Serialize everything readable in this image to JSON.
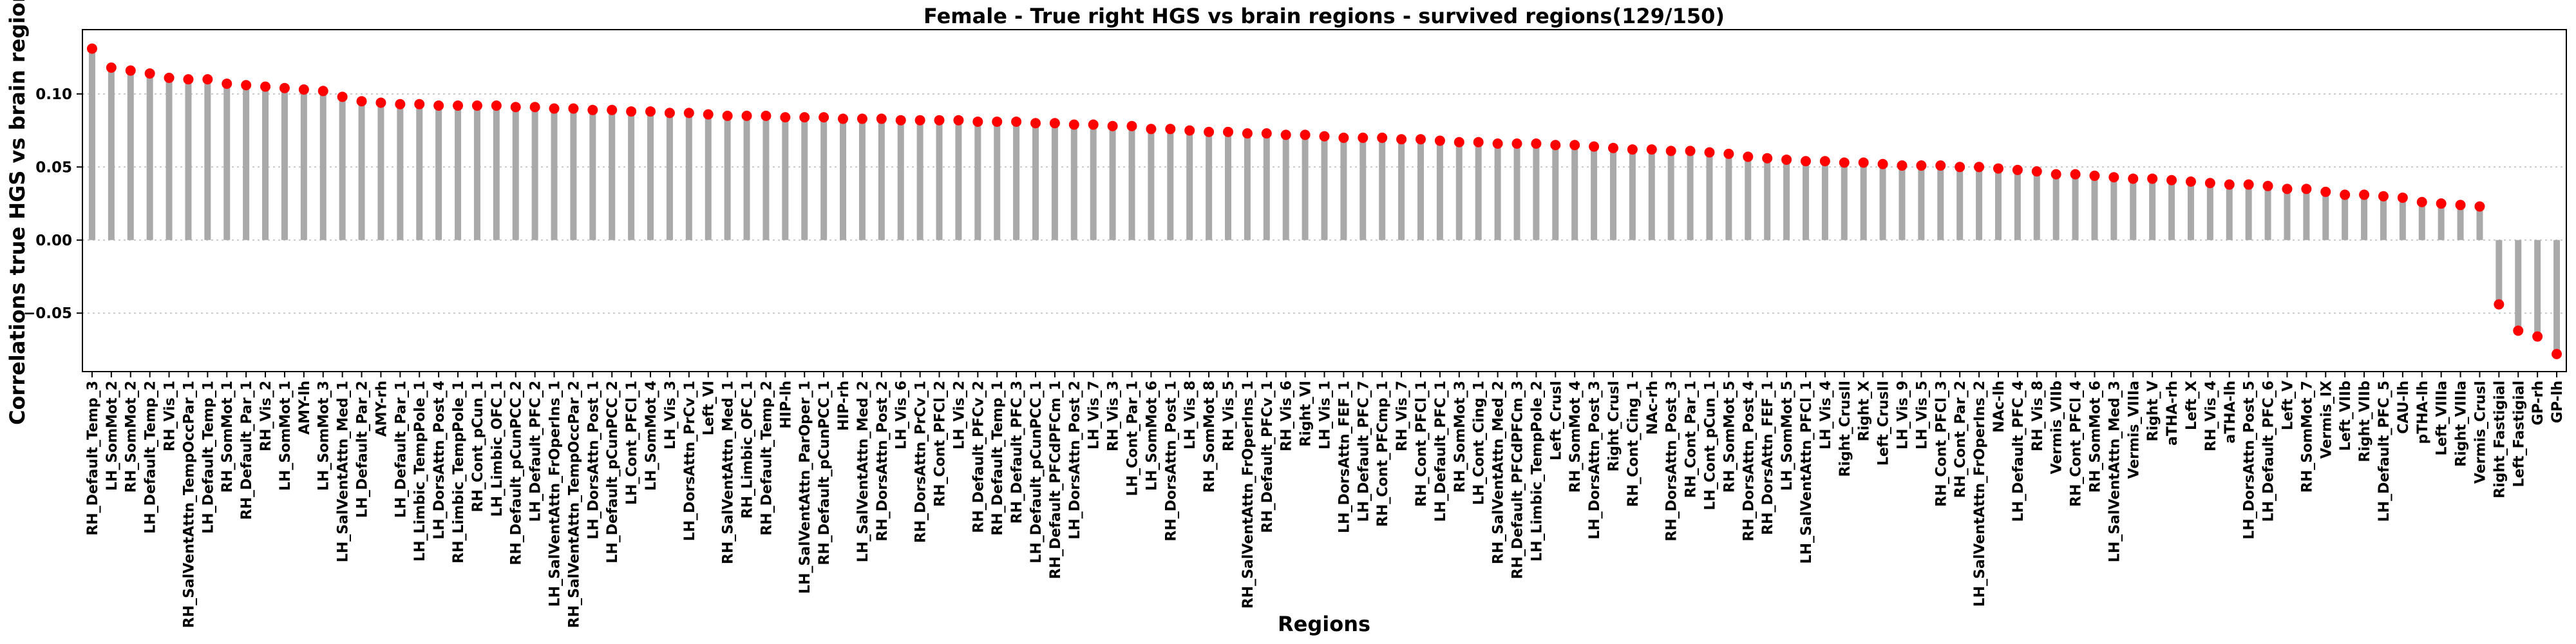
{
  "chart_data": {
    "type": "lollipop",
    "title": "Female - True right HGS vs brain regions - survived regions(129/150)",
    "x_label": "Regions",
    "y_label": "Correlations true HGS vs brain regions",
    "stem_color": "#a9a9a9",
    "marker_color": "#ff0000",
    "grid": true,
    "ylim": [
      -0.09,
      0.144
    ],
    "yticks": [
      {
        "value": -0.05,
        "label": "−0.05"
      },
      {
        "value": 0,
        "label": "0.00"
      },
      {
        "value": 0.05,
        "label": "0.05"
      },
      {
        "value": 0.1,
        "label": "0.10"
      }
    ],
    "categories": [
      "RH_Default_Temp_3",
      "LH_SomMot_2",
      "RH_SomMot_2",
      "LH_Default_Temp_2",
      "RH_Vis_1",
      "RH_SalVentAttn_TempOccPar_1",
      "LH_Default_Temp_1",
      "RH_SomMot_1",
      "RH_Default_Par_1",
      "RH_Vis_2",
      "LH_SomMot_1",
      "AMY-lh",
      "LH_SomMot_3",
      "LH_SalVentAttn_Med_1",
      "LH_Default_Par_2",
      "AMY-rh",
      "LH_Default_Par_1",
      "LH_Limbic_TempPole_1",
      "LH_DorsAttn_Post_4",
      "RH_Limbic_TempPole_1",
      "RH_Cont_pCun_1",
      "LH_Limbic_OFC_1",
      "RH_Default_pCunPCC_2",
      "LH_Default_PFC_2",
      "LH_SalVentAttn_FrOperIns_1",
      "RH_SalVentAttn_TempOccPar_2",
      "LH_DorsAttn_Post_1",
      "LH_Default_pCunPCC_2",
      "LH_Cont_PFCl_1",
      "LH_SomMot_4",
      "LH_Vis_3",
      "LH_DorsAttn_PrCv_1",
      "Left_VI",
      "RH_SalVentAttn_Med_1",
      "RH_Limbic_OFC_1",
      "RH_Default_Temp_2",
      "HIP-lh",
      "LH_SalVentAttn_ParOper_1",
      "RH_Default_pCunPCC_1",
      "HIP-rh",
      "LH_SalVentAttn_Med_2",
      "RH_DorsAttn_Post_2",
      "LH_Vis_6",
      "RH_DorsAttn_PrCv_1",
      "RH_Cont_PFCl_2",
      "LH_Vis_2",
      "RH_Default_PFCv_2",
      "RH_Default_Temp_1",
      "RH_Default_PFC_3",
      "LH_Default_pCunPCC_1",
      "RH_Default_PFCdPFCm_1",
      "LH_DorsAttn_Post_2",
      "LH_Vis_7",
      "RH_Vis_3",
      "LH_Cont_Par_1",
      "LH_SomMot_6",
      "RH_DorsAttn_Post_1",
      "LH_Vis_8",
      "RH_SomMot_8",
      "RH_Vis_5",
      "RH_SalVentAttn_FrOperIns_1",
      "RH_Default_PFCv_1",
      "RH_Vis_6",
      "Right_VI",
      "LH_Vis_1",
      "LH_DorsAttn_FEF_1",
      "LH_Default_PFC_7",
      "RH_Cont_PFCmp_1",
      "RH_Vis_7",
      "RH_Cont_PFCl_1",
      "LH_Default_PFC_1",
      "RH_SomMot_3",
      "LH_Cont_Cing_1",
      "RH_SalVentAttn_Med_2",
      "RH_Default_PFCdPFCm_3",
      "LH_Limbic_TempPole_2",
      "Left_CrusI",
      "RH_SomMot_4",
      "LH_DorsAttn_Post_3",
      "Right_CrusI",
      "RH_Cont_Cing_1",
      "NAc-rh",
      "RH_DorsAttn_Post_3",
      "RH_Cont_Par_1",
      "LH_Cont_pCun_1",
      "RH_SomMot_5",
      "RH_DorsAttn_Post_4",
      "RH_DorsAttn_FEF_1",
      "LH_SomMot_5",
      "LH_SalVentAttn_PFCl_1",
      "LH_Vis_4",
      "Right_CrusII",
      "Right_X",
      "Left_CrusII",
      "LH_Vis_9",
      "LH_Vis_5",
      "RH_Cont_PFCl_3",
      "RH_Cont_Par_2",
      "LH_SalVentAttn_FrOperIns_2",
      "NAc-lh",
      "LH_Default_PFC_4",
      "RH_Vis_8",
      "Vermis_VIIb",
      "RH_Cont_PFCl_4",
      "RH_SomMot_6",
      "LH_SalVentAttn_Med_3",
      "Vermis_VIIIa",
      "Right_V",
      "aTHA-rh",
      "Left_X",
      "RH_Vis_4",
      "aTHA-lh",
      "LH_DorsAttn_Post_5",
      "LH_Default_PFC_6",
      "Left_V",
      "RH_SomMot_7",
      "Vermis_IX",
      "Left_VIIb",
      "Right_VIIb",
      "LH_Default_PFC_5",
      "CAU-lh",
      "pTHA-lh",
      "Left_VIIIa",
      "Right_VIIIa",
      "Vermis_CrusI",
      "Right_Fastigial",
      "Left_Fastigial",
      "GP-rh",
      "GP-lh"
    ],
    "values": [
      0.131,
      0.118,
      0.116,
      0.114,
      0.111,
      0.11,
      0.11,
      0.107,
      0.106,
      0.105,
      0.104,
      0.103,
      0.102,
      0.098,
      0.095,
      0.094,
      0.093,
      0.093,
      0.092,
      0.092,
      0.092,
      0.092,
      0.091,
      0.091,
      0.09,
      0.09,
      0.089,
      0.089,
      0.088,
      0.088,
      0.087,
      0.087,
      0.086,
      0.085,
      0.085,
      0.085,
      0.084,
      0.084,
      0.084,
      0.083,
      0.083,
      0.083,
      0.082,
      0.082,
      0.082,
      0.082,
      0.081,
      0.081,
      0.081,
      0.08,
      0.08,
      0.079,
      0.079,
      0.078,
      0.078,
      0.076,
      0.076,
      0.075,
      0.074,
      0.074,
      0.073,
      0.073,
      0.072,
      0.072,
      0.071,
      0.07,
      0.07,
      0.07,
      0.069,
      0.069,
      0.068,
      0.067,
      0.067,
      0.066,
      0.066,
      0.066,
      0.065,
      0.065,
      0.064,
      0.063,
      0.062,
      0.062,
      0.061,
      0.061,
      0.06,
      0.059,
      0.057,
      0.056,
      0.055,
      0.054,
      0.054,
      0.053,
      0.053,
      0.052,
      0.051,
      0.051,
      0.051,
      0.05,
      0.05,
      0.049,
      0.048,
      0.047,
      0.045,
      0.045,
      0.044,
      0.043,
      0.042,
      0.042,
      0.041,
      0.04,
      0.039,
      0.038,
      0.038,
      0.037,
      0.035,
      0.035,
      0.033,
      0.031,
      0.031,
      0.03,
      0.029,
      0.026,
      0.025,
      0.024,
      0.023,
      -0.044,
      -0.062,
      -0.066,
      -0.078
    ]
  }
}
